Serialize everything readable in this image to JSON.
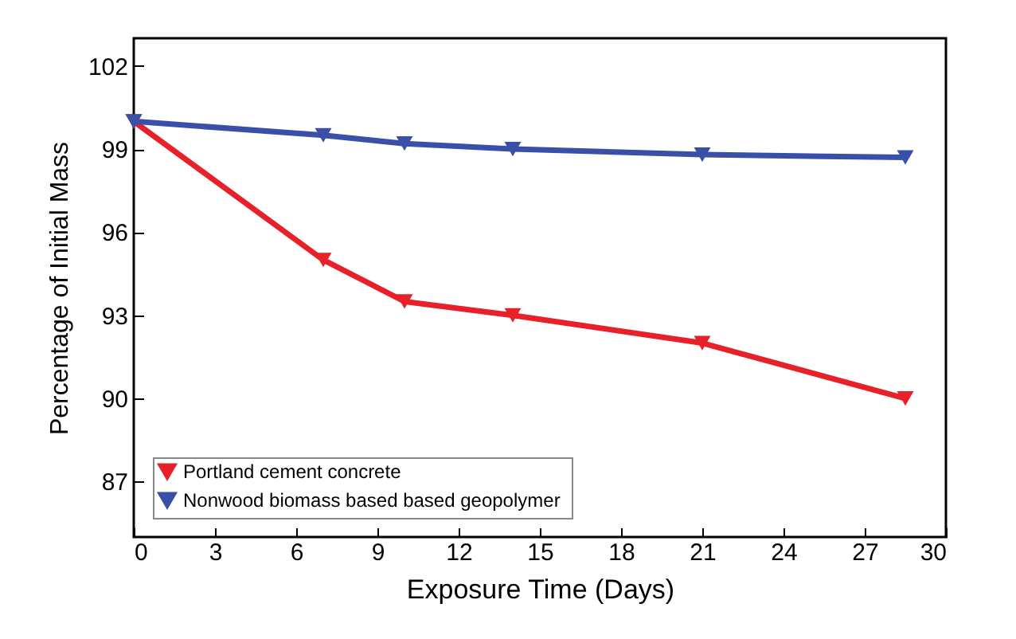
{
  "chart_data": {
    "type": "line",
    "xlabel": "Exposure Time (Days)",
    "ylabel": "Percentage of Initial Mass",
    "x": [
      0,
      7,
      10,
      14,
      21,
      28.5
    ],
    "series": [
      {
        "name": "Portland  cement  concrete",
        "color": "#e8202a",
        "values": [
          100,
          95,
          93.5,
          93,
          92,
          90
        ]
      },
      {
        "name": "Nonwood  biomass based based geopolymer",
        "color": "#3a4fa8",
        "values": [
          100,
          99.5,
          99.2,
          99,
          98.8,
          98.7
        ]
      }
    ],
    "xlim": [
      0,
      30
    ],
    "xticks": [
      0,
      3,
      6,
      9,
      12,
      15,
      18,
      21,
      24,
      27,
      30
    ],
    "ylim": [
      85,
      103
    ],
    "yticks": [
      87,
      90,
      93,
      96,
      99,
      102
    ],
    "grid": false,
    "legend": "bottom left",
    "marker": "triangle",
    "line_style": "solid"
  }
}
